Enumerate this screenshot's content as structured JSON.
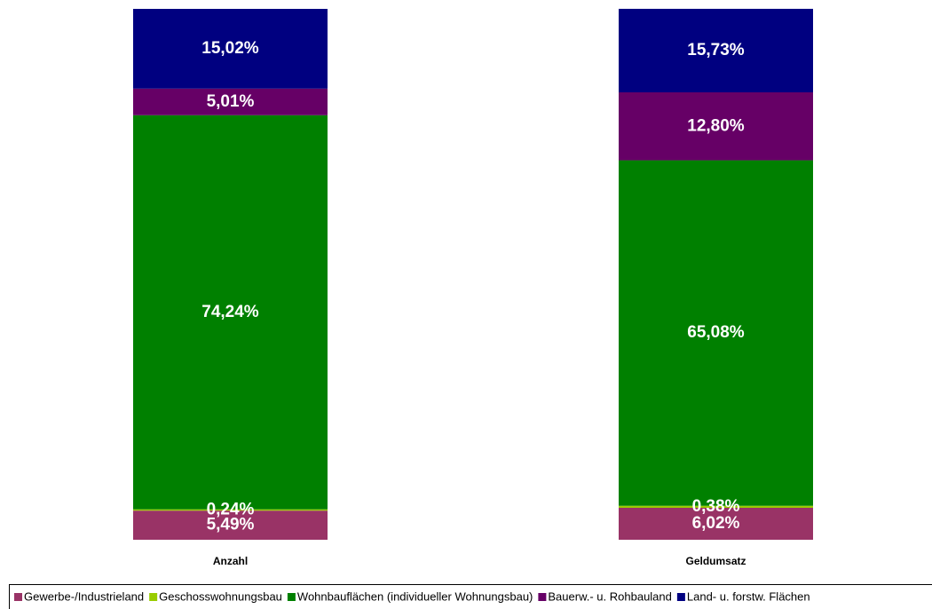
{
  "chart_data": {
    "type": "stacked_bar",
    "categories": [
      "Anzahl",
      "Geldumsatz"
    ],
    "ylim": [
      0,
      100
    ],
    "legend": "bottom",
    "series": [
      {
        "name": "Gewerbe-/Industrieland",
        "color": "#993366",
        "values": [
          5.49,
          6.02
        ],
        "value_labels": [
          "5,49%",
          "6,02%"
        ]
      },
      {
        "name": "Geschosswohnungsbau",
        "color": "#99cc00",
        "values": [
          0.24,
          0.38
        ],
        "value_labels": [
          "0,24%",
          "0,38%"
        ]
      },
      {
        "name": "Wohnbauflächen (individueller Wohnungsbau)",
        "color": "#008000",
        "values": [
          74.24,
          65.08
        ],
        "value_labels": [
          "74,24%",
          "65,08%"
        ]
      },
      {
        "name": "Bauerw.- u. Rohbauland",
        "color": "#660066",
        "values": [
          5.01,
          12.8
        ],
        "value_labels": [
          "5,01%",
          "12,80%"
        ]
      },
      {
        "name": "Land- u. forstw. Flächen",
        "color": "#000080",
        "values": [
          15.02,
          15.73
        ],
        "value_labels": [
          "15,02%",
          "15,73%"
        ]
      }
    ]
  }
}
